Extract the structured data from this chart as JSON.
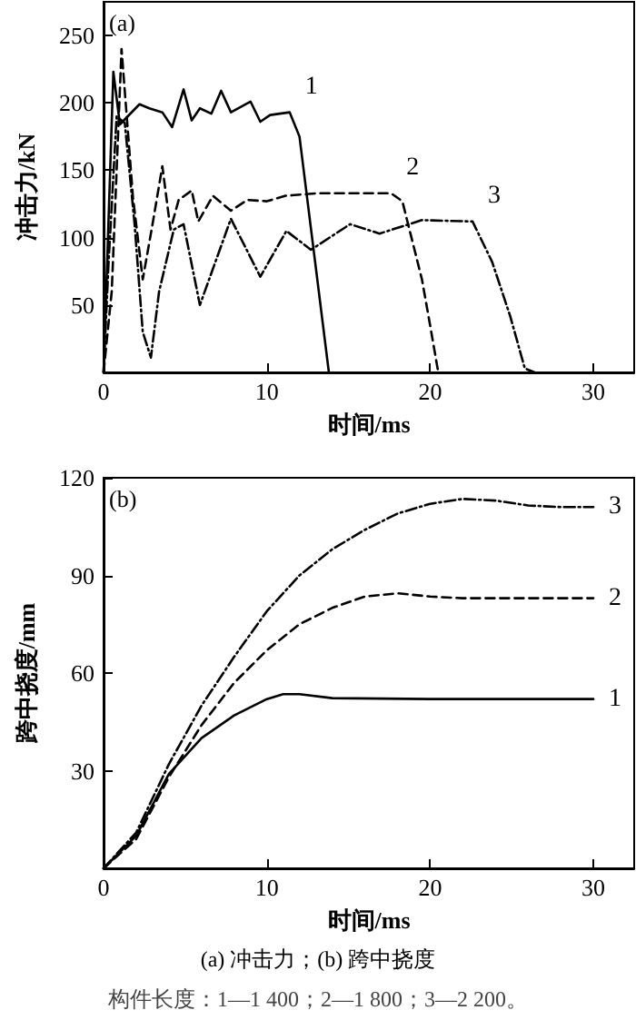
{
  "chart_data": [
    {
      "type": "line",
      "xlabel": "时间/ms",
      "ylabel": "冲击力/kN",
      "xlim": [
        0,
        32.5
      ],
      "ylim": [
        0,
        275
      ],
      "xticks": [
        0,
        10,
        20,
        30
      ],
      "yticks": [
        50,
        100,
        150,
        200,
        250
      ],
      "grid": false,
      "marker": "none",
      "annotations": [
        "(a)"
      ],
      "series": [
        {
          "name": "1",
          "color": "#000000",
          "line_style": "solid",
          "x": [
            0,
            0.6,
            1.0,
            2.2,
            2.8,
            3.6,
            4.2,
            4.9,
            5.4,
            5.9,
            6.6,
            7.2,
            7.8,
            9.0,
            9.6,
            10.2,
            11.4,
            12.0,
            13.8
          ],
          "values": [
            0,
            223,
            184,
            199,
            196,
            193,
            182,
            210,
            187,
            196,
            192,
            209,
            193,
            201,
            186,
            191,
            193,
            175,
            0
          ]
        },
        {
          "name": "2",
          "color": "#000000",
          "line_style": "dashed",
          "x": [
            0,
            0.5,
            1.1,
            1.8,
            2.4,
            3.0,
            3.6,
            4.1,
            4.6,
            5.4,
            5.8,
            6.7,
            7.8,
            8.8,
            10.0,
            11.1,
            13.2,
            17.6,
            18.3,
            19.5,
            20.0,
            20.5
          ],
          "values": [
            0,
            60,
            240,
            130,
            69,
            110,
            153,
            106,
            128,
            135,
            112,
            131,
            120,
            128,
            127,
            131,
            133,
            133,
            127,
            69,
            35,
            0
          ]
        },
        {
          "name": "3",
          "color": "#000000",
          "line_style": "dashed",
          "x": [
            0,
            0.3,
            0.8,
            1.3,
            1.9,
            2.4,
            2.9,
            3.4,
            4.3,
            4.9,
            5.9,
            7.8,
            9.6,
            11.2,
            12.7,
            15.1,
            16.9,
            19.5,
            22.6,
            23.8,
            24.9,
            25.8,
            26.4
          ],
          "values": [
            0,
            80,
            190,
            185,
            110,
            30,
            11,
            60,
            106,
            110,
            50,
            114,
            71,
            105,
            91,
            110,
            103,
            113,
            112,
            82,
            42,
            3,
            0
          ]
        }
      ]
    },
    {
      "type": "line",
      "xlabel": "时间/ms",
      "ylabel": "跨中挠度/mm",
      "xlim": [
        0,
        32.5
      ],
      "ylim": [
        0,
        120
      ],
      "xticks": [
        0,
        10,
        20,
        30
      ],
      "yticks": [
        30,
        60,
        90,
        120
      ],
      "grid": false,
      "marker": "none",
      "annotations": [
        "(b)",
        "(a) 冲击力；(b) 跨中挠度",
        "构件长度：1—1 400；2—1 800；3—2 200。"
      ],
      "series": [
        {
          "name": "1",
          "color": "#000000",
          "line_style": "solid",
          "x": [
            0,
            2,
            4,
            6,
            8,
            10,
            11,
            12,
            14,
            20,
            30
          ],
          "values": [
            0,
            10,
            29,
            40,
            47,
            52,
            53.5,
            53.5,
            52.3,
            52,
            52
          ]
        },
        {
          "name": "2",
          "color": "#000000",
          "line_style": "dashed",
          "x": [
            0,
            2,
            4,
            6,
            8,
            10,
            12,
            14,
            16,
            18,
            20,
            22,
            30
          ],
          "values": [
            0,
            9,
            28,
            44,
            57,
            67,
            75,
            80,
            83.5,
            84.5,
            83.5,
            83,
            83
          ]
        },
        {
          "name": "3",
          "color": "#000000",
          "line_style": "dashed",
          "x": [
            0,
            2,
            4,
            6,
            8,
            10,
            12,
            14,
            16,
            18,
            20,
            22,
            24,
            26,
            28,
            30
          ],
          "values": [
            0,
            11,
            32,
            50,
            65,
            79,
            90,
            98,
            104,
            109,
            112,
            113.5,
            113,
            111.5,
            111,
            111
          ]
        }
      ]
    }
  ]
}
